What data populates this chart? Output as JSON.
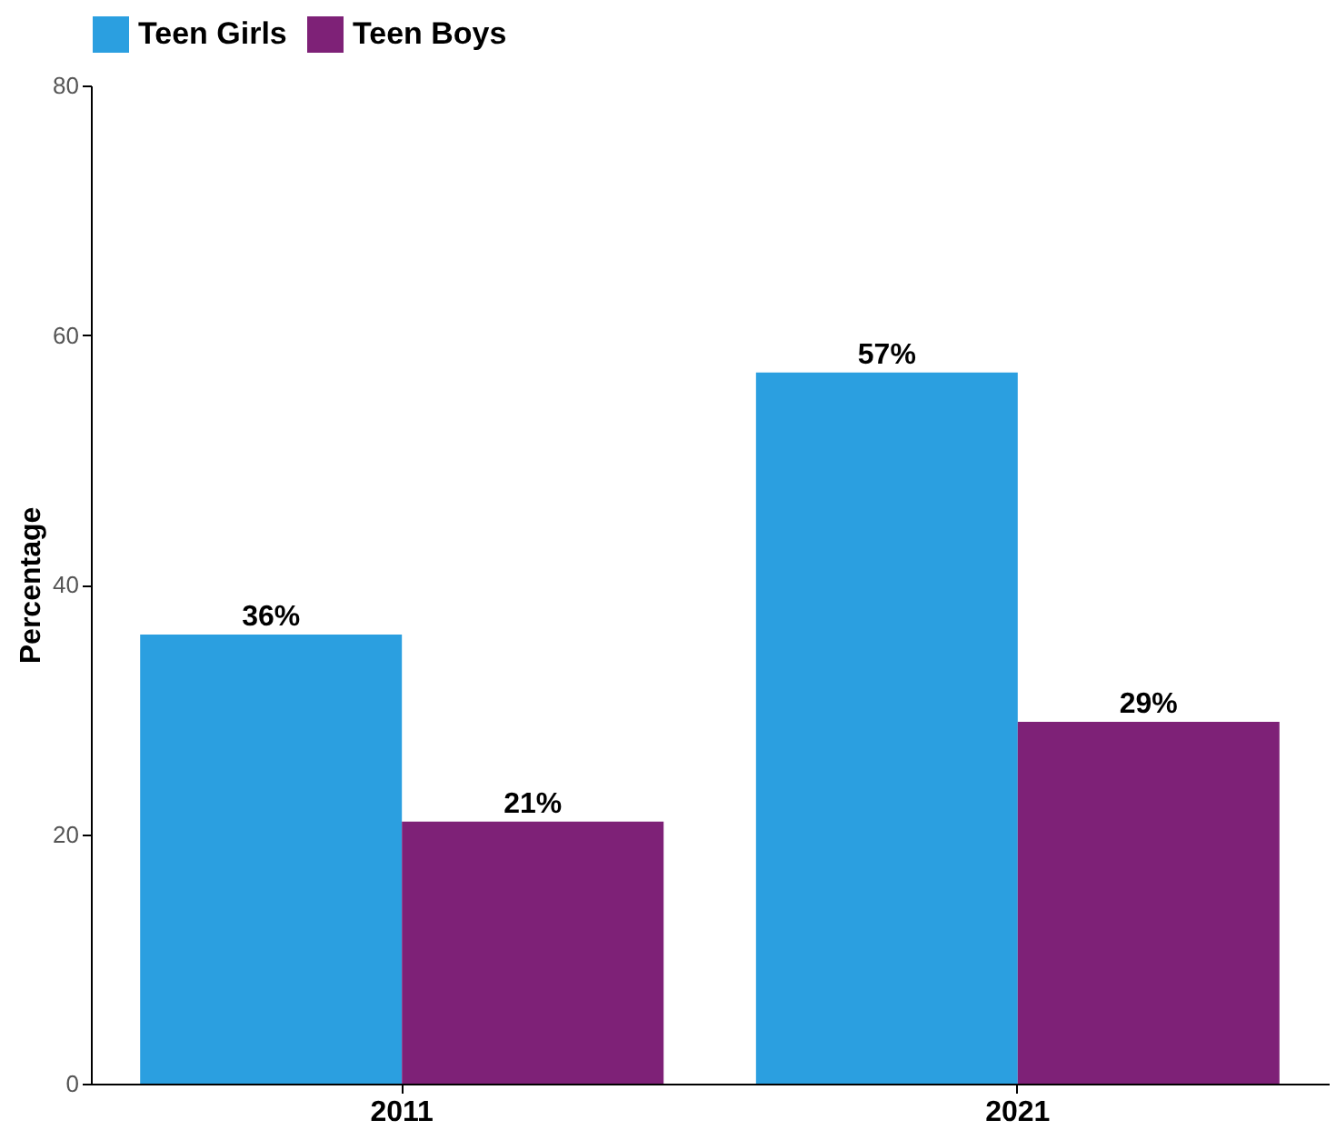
{
  "chart_data": {
    "type": "bar",
    "categories": [
      "2011",
      "2021"
    ],
    "ylabel": "Percentage",
    "ylim": [
      0,
      80
    ],
    "yticks": [
      0,
      20,
      40,
      60,
      80
    ],
    "legend": "top",
    "series": [
      {
        "name": "Teen Girls",
        "color": "#2b9fe0",
        "values": [
          36,
          57
        ],
        "value_labels": [
          "36%",
          "57%"
        ]
      },
      {
        "name": "Teen Boys",
        "color": "#7e2177",
        "values": [
          21,
          29
        ],
        "value_labels": [
          "21%",
          "29%"
        ]
      }
    ]
  }
}
